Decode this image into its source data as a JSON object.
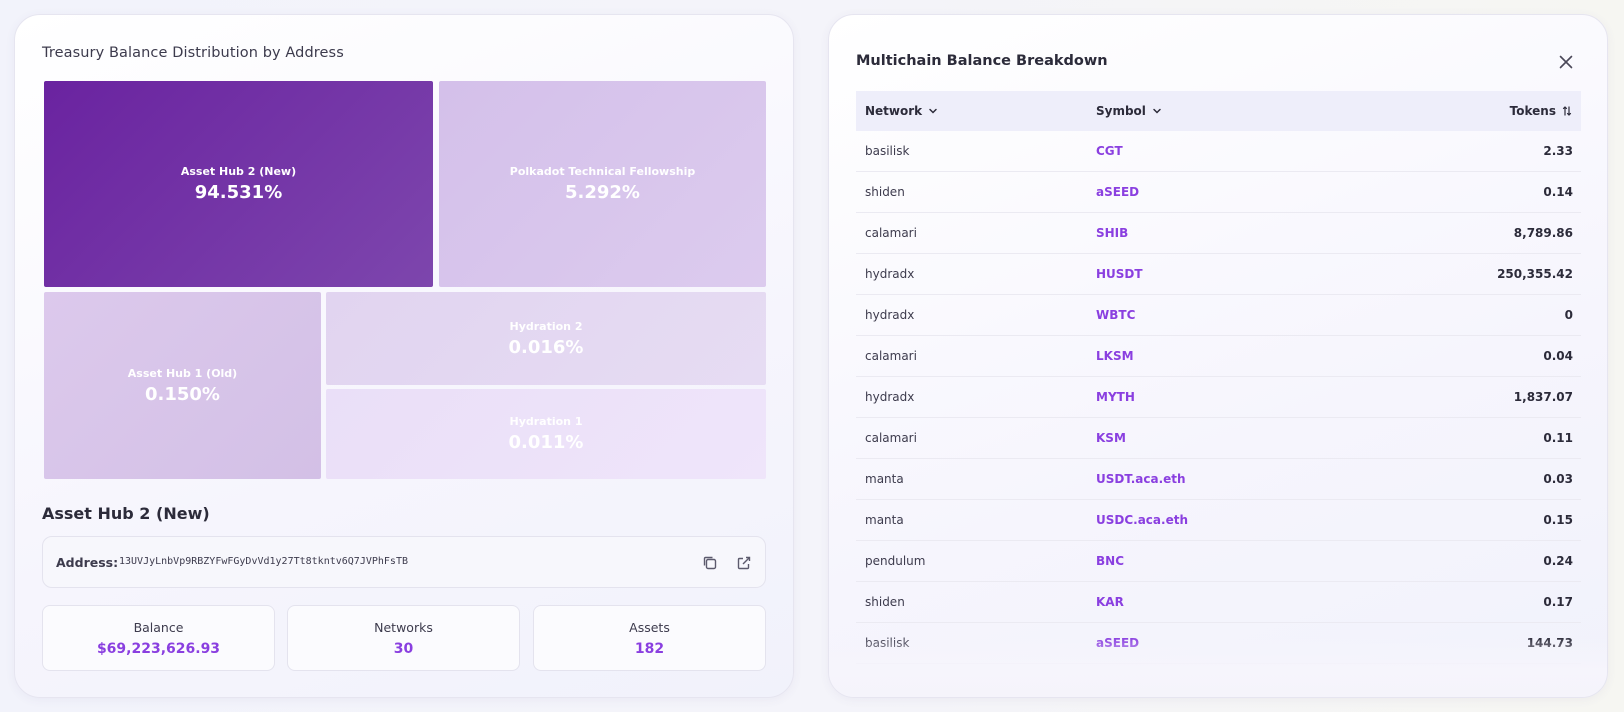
{
  "left_panel": {
    "title": "Treasury Balance Distribution by Address",
    "treemap": [
      {
        "label": "Asset Hub 2 (New)",
        "percent": "94.531%"
      },
      {
        "label": "Polkadot Technical Fellowship",
        "percent": "5.292%"
      },
      {
        "label": "Asset Hub 1 (Old)",
        "percent": "0.150%"
      },
      {
        "label": "Hydration 2",
        "percent": "0.016%"
      },
      {
        "label": "Hydration 1",
        "percent": "0.011%"
      }
    ],
    "selected": {
      "name": "Asset Hub 2 (New)",
      "address_label": "Address:",
      "address": "13UVJyLnbVp9RBZYFwFGyDvVd1y27Tt8tkntv6Q7JVPhFsTB",
      "copy_icon": "copy-icon",
      "external_icon": "external-link-icon"
    },
    "stats": [
      {
        "label": "Balance",
        "value": "$69,223,626.93"
      },
      {
        "label": "Networks",
        "value": "30"
      },
      {
        "label": "Assets",
        "value": "182"
      }
    ]
  },
  "right_panel": {
    "title": "Multichain Balance Breakdown",
    "close_icon": "close-icon",
    "columns": {
      "network": "Network",
      "symbol": "Symbol",
      "tokens": "Tokens"
    },
    "rows": [
      {
        "network": "basilisk",
        "symbol": "CGT",
        "tokens": "2.33"
      },
      {
        "network": "shiden",
        "symbol": "aSEED",
        "tokens": "0.14"
      },
      {
        "network": "calamari",
        "symbol": "SHIB",
        "tokens": "8,789.86"
      },
      {
        "network": "hydradx",
        "symbol": "HUSDT",
        "tokens": "250,355.42"
      },
      {
        "network": "hydradx",
        "symbol": "WBTC",
        "tokens": "0"
      },
      {
        "network": "calamari",
        "symbol": "LKSM",
        "tokens": "0.04"
      },
      {
        "network": "hydradx",
        "symbol": "MYTH",
        "tokens": "1,837.07"
      },
      {
        "network": "calamari",
        "symbol": "KSM",
        "tokens": "0.11"
      },
      {
        "network": "manta",
        "symbol": "USDT.aca.eth",
        "tokens": "0.03"
      },
      {
        "network": "manta",
        "symbol": "USDC.aca.eth",
        "tokens": "0.15"
      },
      {
        "network": "pendulum",
        "symbol": "BNC",
        "tokens": "0.24"
      },
      {
        "network": "shiden",
        "symbol": "KAR",
        "tokens": "0.17"
      },
      {
        "network": "basilisk",
        "symbol": "aSEED",
        "tokens": "144.73"
      }
    ]
  },
  "colors": {
    "accent": "#8a3fe0",
    "treemap_primary": "#6a23a0"
  }
}
